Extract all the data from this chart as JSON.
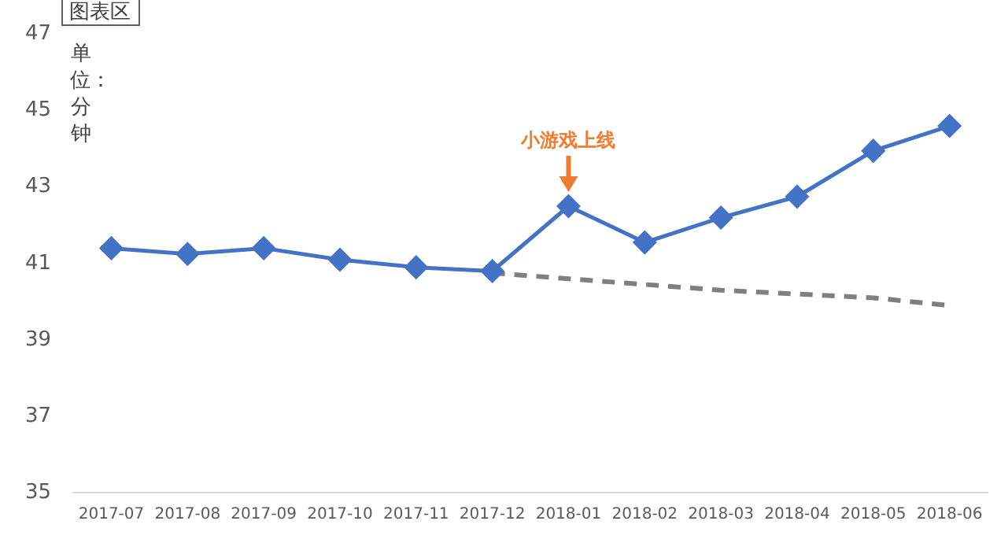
{
  "chart_data": {
    "type": "line",
    "ylabel": "单位：分钟",
    "categories": [
      "2017-07",
      "2017-08",
      "2017-09",
      "2017-10",
      "2017-11",
      "2017-12",
      "2018-01",
      "2018-02",
      "2018-03",
      "2018-04",
      "2018-05",
      "2018-06"
    ],
    "series": [
      {
        "color": "#4472c4",
        "marker": "diamond",
        "line_style": "solid",
        "values": [
          41.4,
          41.25,
          41.4,
          41.1,
          40.9,
          40.8,
          42.5,
          41.55,
          42.2,
          42.75,
          43.95,
          44.6
        ]
      },
      {
        "color": "#7f7f7f",
        "marker": "none",
        "line_style": "dashed",
        "values": [
          null,
          null,
          null,
          null,
          null,
          40.75,
          40.6,
          40.45,
          40.3,
          40.2,
          40.1,
          39.9
        ]
      }
    ],
    "ylim": [
      35,
      47
    ],
    "yticks": [
      35,
      37,
      39,
      41,
      43,
      45,
      47
    ],
    "grid": false,
    "legend": false,
    "annotations": [
      {
        "text": "小游戏上线",
        "x": "2018-01",
        "y": 42.5
      },
      "图表区"
    ]
  }
}
